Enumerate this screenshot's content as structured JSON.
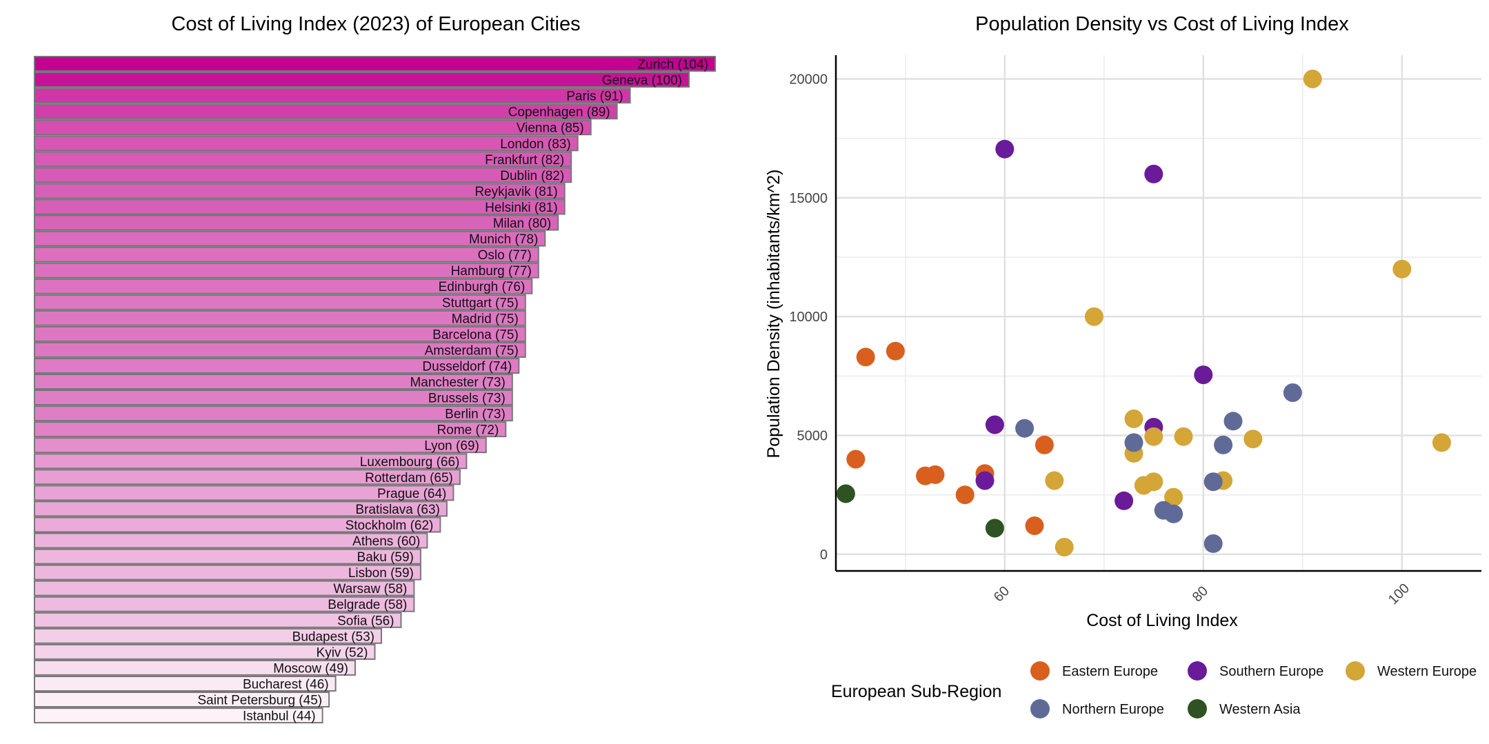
{
  "chart_data": [
    {
      "type": "bar",
      "orientation": "horizontal",
      "title": "Cost of Living Index (2023) of European Cities",
      "xlabel": "",
      "ylabel": "",
      "fill_low": "#fcf2f8",
      "fill_high": "#c2038f",
      "bar_border": "#777777",
      "categories": [
        "Zurich",
        "Geneva",
        "Paris",
        "Copenhagen",
        "Vienna",
        "London",
        "Frankfurt",
        "Dublin",
        "Reykjavik",
        "Helsinki",
        "Milan",
        "Munich",
        "Oslo",
        "Hamburg",
        "Edinburgh",
        "Stuttgart",
        "Madrid",
        "Barcelona",
        "Amsterdam",
        "Dusseldorf",
        "Manchester",
        "Brussels",
        "Berlin",
        "Rome",
        "Lyon",
        "Luxembourg",
        "Rotterdam",
        "Prague",
        "Bratislava",
        "Stockholm",
        "Athens",
        "Baku",
        "Lisbon",
        "Warsaw",
        "Belgrade",
        "Sofia",
        "Budapest",
        "Kyiv",
        "Moscow",
        "Bucharest",
        "Saint Petersburg",
        "Istanbul"
      ],
      "values": [
        104,
        100,
        91,
        89,
        85,
        83,
        82,
        82,
        81,
        81,
        80,
        78,
        77,
        77,
        76,
        75,
        75,
        75,
        75,
        74,
        73,
        73,
        73,
        72,
        69,
        66,
        65,
        64,
        63,
        62,
        60,
        59,
        59,
        58,
        58,
        56,
        53,
        52,
        49,
        46,
        45,
        44
      ],
      "labels": [
        "Zurich (104)",
        "Geneva (100)",
        "Paris (91)",
        "Copenhagen (89)",
        "Vienna (85)",
        "London (83)",
        "Frankfurt (82)",
        "Dublin (82)",
        "Reykjavik (81)",
        "Helsinki (81)",
        "Milan (80)",
        "Munich (78)",
        "Oslo (77)",
        "Hamburg (77)",
        "Edinburgh (76)",
        "Stuttgart (75)",
        "Madrid (75)",
        "Barcelona (75)",
        "Amsterdam (75)",
        "Dusseldorf (74)",
        "Manchester (73)",
        "Brussels (73)",
        "Berlin (73)",
        "Rome (72)",
        "Lyon (69)",
        "Luxembourg (66)",
        "Rotterdam (65)",
        "Prague (64)",
        "Bratislava (63)",
        "Stockholm (62)",
        "Athens (60)",
        "Baku (59)",
        "Lisbon (59)",
        "Warsaw (58)",
        "Belgrade (58)",
        "Sofia (56)",
        "Budapest (53)",
        "Kyiv (52)",
        "Moscow (49)",
        "Bucharest (46)",
        "Saint Petersburg (45)",
        "Istanbul (44)"
      ]
    },
    {
      "type": "scatter",
      "title": "Population Density vs Cost of Living Index",
      "xlabel": "Cost of Living Index",
      "ylabel": "Population Density (inhabitants/km^2)",
      "xlim": [
        43,
        108
      ],
      "ylim": [
        -700,
        21000
      ],
      "x_ticks": [
        60,
        80,
        100
      ],
      "y_ticks": [
        0,
        5000,
        10000,
        15000,
        20000
      ],
      "grid": true,
      "legend": {
        "title": "European Sub-Region",
        "position": "bottom",
        "entries": [
          "Eastern Europe",
          "Southern Europe",
          "Western Europe",
          "Northern Europe",
          "Western Asia"
        ]
      },
      "series": [
        {
          "name": "Eastern Europe",
          "color": "#d95f1e",
          "points": [
            [
              46,
              8300
            ],
            [
              49,
              8550
            ],
            [
              45,
              4000
            ],
            [
              52,
              3300
            ],
            [
              53,
              3350
            ],
            [
              58,
              3400
            ],
            [
              56,
              2500
            ],
            [
              64,
              4600
            ],
            [
              63,
              1200
            ]
          ]
        },
        {
          "name": "Southern Europe",
          "color": "#6a1b9a",
          "points": [
            [
              60,
              17050
            ],
            [
              75,
              16000
            ],
            [
              80,
              7550
            ],
            [
              59,
              5450
            ],
            [
              75,
              5350
            ],
            [
              72,
              2250
            ],
            [
              58,
              3100
            ]
          ]
        },
        {
          "name": "Western Europe",
          "color": "#d4a537",
          "points": [
            [
              91,
              20000
            ],
            [
              100,
              12000
            ],
            [
              69,
              10000
            ],
            [
              104,
              4700
            ],
            [
              73,
              5700
            ],
            [
              75,
              4950
            ],
            [
              78,
              4950
            ],
            [
              85,
              4850
            ],
            [
              73,
              4250
            ],
            [
              65,
              3100
            ],
            [
              75,
              3050
            ],
            [
              74,
              2900
            ],
            [
              82,
              3100
            ],
            [
              77,
              2400
            ],
            [
              66,
              300
            ]
          ]
        },
        {
          "name": "Northern Europe",
          "color": "#5f6b96",
          "points": [
            [
              89,
              6800
            ],
            [
              83,
              5600
            ],
            [
              62,
              5300
            ],
            [
              73,
              4700
            ],
            [
              82,
              4600
            ],
            [
              81,
              3050
            ],
            [
              76,
              1850
            ],
            [
              77,
              1700
            ],
            [
              81,
              450
            ]
          ]
        },
        {
          "name": "Western Asia",
          "color": "#2e5222",
          "points": [
            [
              44,
              2550
            ],
            [
              59,
              1100
            ]
          ]
        }
      ]
    }
  ]
}
